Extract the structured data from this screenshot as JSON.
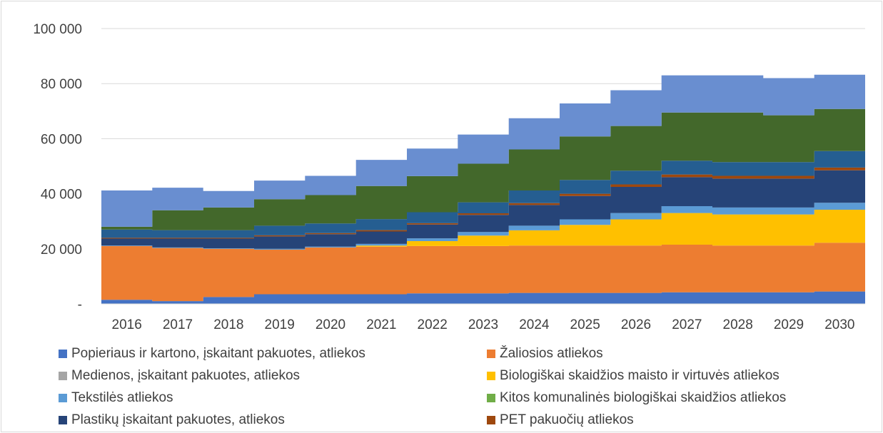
{
  "colors": {
    "paper": "#4472c4",
    "green": "#ed7d31",
    "wood": "#a5a5a5",
    "food": "#ffc000",
    "textile": "#5b9bd5",
    "other_bio": "#70ad47",
    "plastic": "#264478",
    "pet": "#9e480e",
    "band_9": "#255e91",
    "band_10": "#43682b",
    "band_11": "#698ed0",
    "grid": "#d9d9d9",
    "text": "#404040"
  },
  "chart_data": {
    "type": "area",
    "stacked": true,
    "step": true,
    "categories": [
      "2016",
      "2017",
      "2018",
      "2019",
      "2020",
      "2021",
      "2022",
      "2023",
      "2024",
      "2025",
      "2026",
      "2027",
      "2028",
      "2029",
      "2030"
    ],
    "ylim": [
      0,
      100000
    ],
    "yticks": [
      0,
      20000,
      40000,
      60000,
      80000,
      100000
    ],
    "ytick_labels": [
      "-",
      "20 000",
      "40 000",
      "60 000",
      "80 000",
      "100 000"
    ],
    "grid": true,
    "legend_position": "bottom",
    "series": [
      {
        "name": "Popieriaus ir kartono, įskaitant pakuotes, atliekos",
        "color_key": "paper",
        "values": [
          1500,
          1000,
          2500,
          3500,
          3500,
          3500,
          3800,
          3800,
          4000,
          4000,
          4000,
          4200,
          4200,
          4200,
          4500
        ]
      },
      {
        "name": "Žaliosios atliekos",
        "color_key": "green",
        "values": [
          19500,
          19300,
          17500,
          16200,
          17000,
          17300,
          17200,
          17200,
          17200,
          17200,
          17200,
          17300,
          17000,
          17000,
          17700
        ]
      },
      {
        "name": "Medienos, įskaitant pakuotes, atliekos",
        "color_key": "wood",
        "values": [
          0,
          0,
          0,
          0,
          0,
          0,
          0,
          0,
          0,
          0,
          0,
          0,
          0,
          0,
          0
        ]
      },
      {
        "name": "Biologiškai skaidžios maisto ir virtuvės atliekos",
        "color_key": "food",
        "values": [
          0,
          0,
          0,
          0,
          0,
          400,
          1800,
          3800,
          5500,
          7500,
          9500,
          11500,
          11300,
          11300,
          12000
        ]
      },
      {
        "name": "Tekstilės atliekos",
        "color_key": "textile",
        "values": [
          200,
          200,
          200,
          300,
          300,
          600,
          1000,
          1300,
          1700,
          2000,
          2300,
          2500,
          2500,
          2500,
          2500
        ]
      },
      {
        "name": "Kitos komunalinės biologiškai skaidžios atliekos",
        "color_key": "other_bio",
        "values": [
          0,
          0,
          0,
          0,
          0,
          0,
          0,
          0,
          0,
          0,
          0,
          0,
          0,
          0,
          0
        ]
      },
      {
        "name": "Plastikų įskaitant pakuotes, atliekos",
        "color_key": "plastic",
        "values": [
          2500,
          3200,
          3500,
          4500,
          4500,
          4500,
          5000,
          6200,
          7500,
          8500,
          9500,
          10500,
          10500,
          10500,
          11800
        ]
      },
      {
        "name": "PET pakuočių atliekos",
        "color_key": "pet",
        "values": [
          300,
          300,
          300,
          400,
          400,
          500,
          500,
          600,
          700,
          800,
          900,
          1000,
          1000,
          1000,
          1000
        ]
      },
      {
        "name": "",
        "color_key": "band_9",
        "values": [
          3000,
          2800,
          2800,
          3500,
          3500,
          4000,
          4000,
          4000,
          4600,
          5000,
          5000,
          5000,
          5000,
          5000,
          6000
        ]
      },
      {
        "name": "",
        "color_key": "band_10",
        "values": [
          1000,
          7200,
          8200,
          9600,
          10300,
          12000,
          13100,
          14000,
          14900,
          15800,
          16200,
          17500,
          18000,
          17000,
          15300
        ]
      },
      {
        "name": "",
        "color_key": "band_11",
        "values": [
          13200,
          8200,
          6000,
          6800,
          7000,
          9500,
          10000,
          10600,
          11300,
          12000,
          13000,
          13500,
          13500,
          13500,
          12400
        ]
      }
    ]
  },
  "legend": {
    "items": [
      {
        "label": "Popieriaus ir kartono, įskaitant pakuotes, atliekos",
        "color_key": "paper"
      },
      {
        "label": "Žaliosios atliekos",
        "color_key": "green"
      },
      {
        "label": "Medienos, įskaitant pakuotes, atliekos",
        "color_key": "wood"
      },
      {
        "label": "Biologiškai skaidžios maisto ir virtuvės atliekos",
        "color_key": "food"
      },
      {
        "label": "Tekstilės atliekos",
        "color_key": "textile"
      },
      {
        "label": "Kitos komunalinės biologiškai skaidžios atliekos",
        "color_key": "other_bio"
      },
      {
        "label": "Plastikų įskaitant pakuotes, atliekos",
        "color_key": "plastic"
      },
      {
        "label": "PET pakuočių atliekos",
        "color_key": "pet"
      }
    ]
  }
}
